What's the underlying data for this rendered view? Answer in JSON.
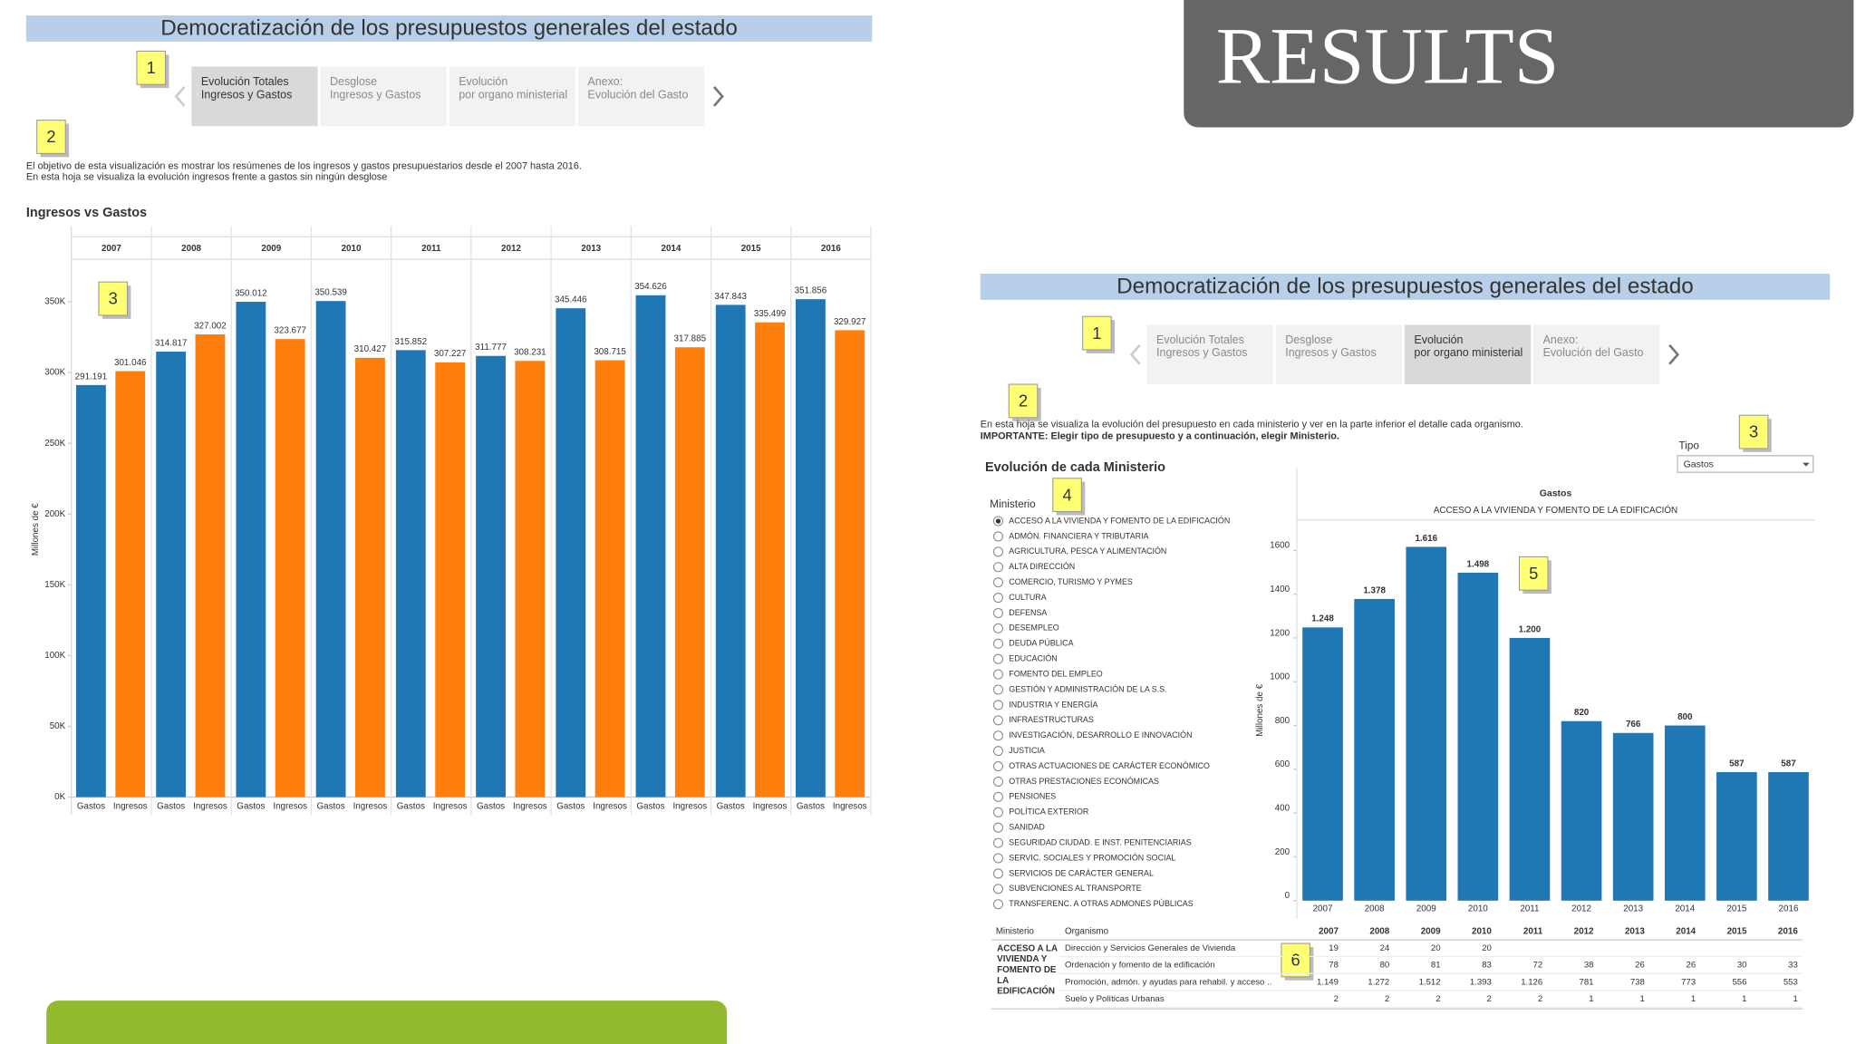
{
  "slide_title": "RESULTS",
  "dashboard_title": "Democratización de los presupuestos generales del estado",
  "tabs": [
    [
      "Evolución Totales",
      "Ingresos y Gastos"
    ],
    [
      "Desglose",
      "Ingresos y Gastos"
    ],
    [
      "Evolución",
      "por organo ministerial"
    ],
    [
      "Anexo:",
      "Evolución del Gasto"
    ]
  ],
  "left_panel": {
    "active_tab": 0,
    "badges": [
      "1",
      "2",
      "3"
    ],
    "description": [
      "El objetivo de esta visualización es mostrar los resúmenes de los ingresos y gastos presupuestarios desde el 2007 hasta 2016.",
      "En esta hoja se visualiza la evolución ingresos frente a gastos sin ningún desglose"
    ]
  },
  "right_panel": {
    "active_tab": 2,
    "badges": [
      "1",
      "2",
      "3",
      "4",
      "5",
      "6"
    ],
    "description": [
      "En esta hoja se visualiza la evolución del presupuesto en cada ministerio y ver en la parte inferior el detalle cada organismo.",
      "IMPORTANTE: Elegir tipo de presupuesto y a continuación, elegir Ministerio."
    ],
    "filter_label": "Tipo",
    "filter_value": "Gastos",
    "section_title": "Evolución de cada Ministerio",
    "list_label": "Ministerio",
    "selected": 0,
    "ministries": [
      "ACCESO A LA VIVIENDA Y FOMENTO DE LA EDIFICACIÓN",
      "ADMÓN. FINANCIERA Y TRIBUTARIA",
      "AGRICULTURA, PESCA Y ALIMENTACIÓN",
      "ALTA DIRECCIÓN",
      "COMERCIO, TURISMO Y PYMES",
      "CULTURA",
      "DEFENSA",
      "DESEMPLEO",
      "DEUDA PÚBLICA",
      "EDUCACIÓN",
      "FOMENTO DEL EMPLEO",
      "GESTIÓN Y ADMINISTRACIÓN DE LA S.S.",
      "INDUSTRIA Y ENERGÍA",
      "INFRAESTRUCTURAS",
      "INVESTIGACIÓN, DESARROLLO E INNOVACIÓN",
      "JUSTICIA",
      "OTRAS ACTUACIONES DE CARÁCTER ECONÓMICO",
      "OTRAS PRESTACIONES ECONÓMICAS",
      "PENSIONES",
      "POLÍTICA EXTERIOR",
      "SANIDAD",
      "SEGURIDAD CIUDAD. E INST. PENITENCIARIAS",
      "SERVIC. SOCIALES Y PROMOCIÓN SOCIAL",
      "SERVICIOS DE CARÁCTER GENERAL",
      "SUBVENCIONES AL TRANSPORTE",
      "TRANSFERENC. A OTRAS ADMONES PÚBLICAS"
    ]
  },
  "chart_data": [
    {
      "type": "grouped_bar",
      "title": "Ingresos vs Gastos",
      "y_label": "Millones de €",
      "categories": [
        "2007",
        "2008",
        "2009",
        "2010",
        "2011",
        "2012",
        "2013",
        "2014",
        "2015",
        "2016"
      ],
      "series": [
        {
          "name": "Gastos",
          "color": "#1f77b4",
          "values": [
            291191,
            314817,
            350012,
            350539,
            315852,
            311777,
            345446,
            354626,
            347843,
            351856
          ],
          "value_labels": [
            "291.191",
            "314.817",
            "350.012",
            "350.539",
            "315.852",
            "311.777",
            "345.446",
            "354.626",
            "347.843",
            "351.856"
          ]
        },
        {
          "name": "Ingresos",
          "color": "#ff7f0e",
          "values": [
            301046,
            327002,
            323677,
            310427,
            307227,
            308231,
            308715,
            317885,
            335499,
            329927
          ],
          "value_labels": [
            "301.046",
            "327.002",
            "323.677",
            "310.427",
            "307.227",
            "308.231",
            "308.715",
            "317.885",
            "335.499",
            "329.927"
          ]
        }
      ],
      "ylim": [
        0,
        380000
      ],
      "yticks": [
        {
          "value": 0,
          "label": "0K"
        },
        {
          "value": 50000,
          "label": "50K"
        },
        {
          "value": 100000,
          "label": "100K"
        },
        {
          "value": 150000,
          "label": "150K"
        },
        {
          "value": 200000,
          "label": "200K"
        },
        {
          "value": 250000,
          "label": "250K"
        },
        {
          "value": 300000,
          "label": "300K"
        },
        {
          "value": 350000,
          "label": "350K"
        }
      ]
    },
    {
      "type": "bar",
      "title": "Gastos",
      "subtitle": "ACCESO A LA VIVIENDA Y FOMENTO DE LA EDIFICACIÓN",
      "y_label": "Millones de €",
      "color": "#1f77b4",
      "categories": [
        "2007",
        "2008",
        "2009",
        "2010",
        "2011",
        "2012",
        "2013",
        "2014",
        "2015",
        "2016"
      ],
      "values": [
        1248,
        1378,
        1616,
        1498,
        1200,
        820,
        766,
        800,
        587,
        587
      ],
      "value_labels": [
        "1.248",
        "1.378",
        "1.616",
        "1.498",
        "1.200",
        "820",
        "766",
        "800",
        "587",
        "587"
      ],
      "ylim": [
        0,
        1750
      ],
      "yticks": [
        0,
        200,
        400,
        600,
        800,
        1000,
        1200,
        1400,
        1600
      ]
    }
  ],
  "table": {
    "headers": [
      "Ministerio",
      "Organismo"
    ],
    "rows": [
      {
        "name": "Dirección y Servicios Generales de Vivienda",
        "values": [
          "19",
          "24",
          "20",
          "20",
          null,
          null,
          null,
          null,
          null,
          null
        ]
      },
      {
        "name": "Ordenación y fomento de la edificación",
        "values": [
          "78",
          "80",
          "81",
          "83",
          "72",
          "38",
          "26",
          "26",
          "30",
          "33"
        ]
      },
      {
        "name": "Promoción, admón. y ayudas para rehabil. y acceso ..",
        "values": [
          "1.149",
          "1.272",
          "1.512",
          "1.393",
          "1.126",
          "781",
          "738",
          "773",
          "556",
          "553"
        ]
      },
      {
        "name": "Suelo y Políticas Urbanas",
        "values": [
          "2",
          "2",
          "2",
          "2",
          "2",
          "1",
          "1",
          "1",
          "1",
          "1"
        ]
      }
    ]
  }
}
